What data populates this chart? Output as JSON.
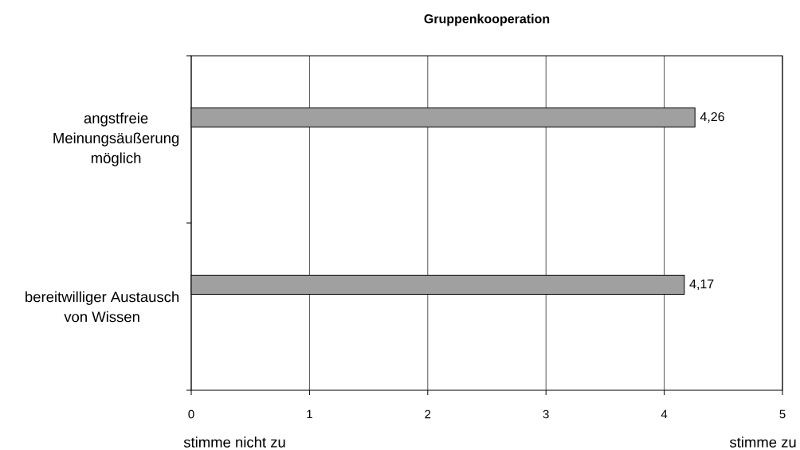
{
  "chart_data": {
    "type": "bar",
    "orientation": "horizontal",
    "title": "Gruppenkooperation",
    "categories": [
      "angstfreie Meinungsäußerung möglich",
      "bereitwilliger Austausch von Wissen"
    ],
    "values": [
      4.26,
      4.17
    ],
    "value_labels": [
      "4,26",
      "4,17"
    ],
    "color": "#a0a0a0",
    "xlim": [
      0,
      5
    ],
    "xticks": [
      0,
      1,
      2,
      3,
      4,
      5
    ],
    "grid": "x",
    "annotations": [
      "stimme nicht zu",
      "stimme zu"
    ]
  }
}
